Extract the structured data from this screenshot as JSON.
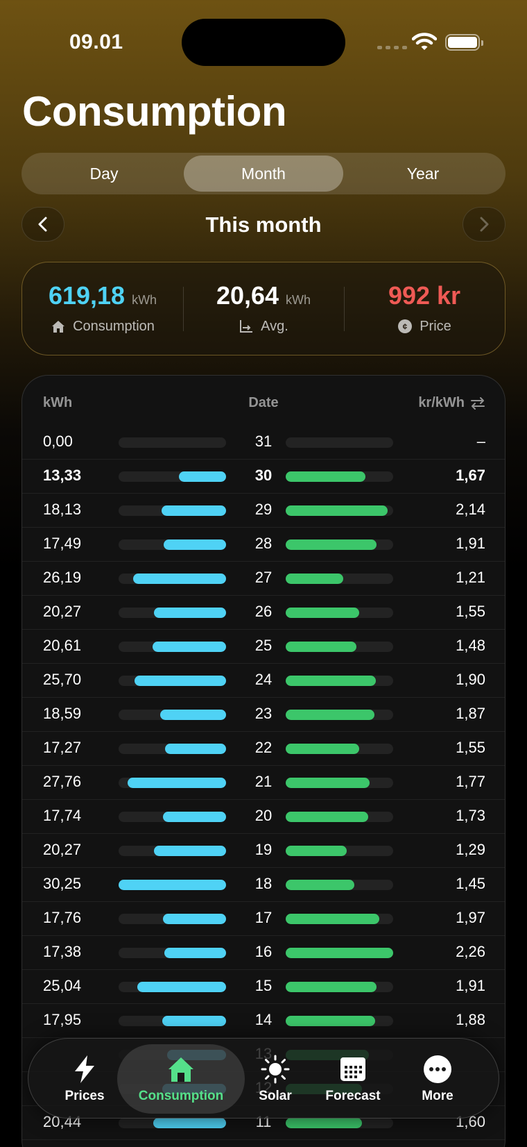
{
  "status": {
    "time": "09.01"
  },
  "title": "Consumption",
  "segments": [
    {
      "label": "Day",
      "active": false
    },
    {
      "label": "Month",
      "active": true
    },
    {
      "label": "Year",
      "active": false
    }
  ],
  "period": {
    "label": "This month"
  },
  "summary": {
    "consumption": {
      "value": "619,18",
      "unit": "kWh",
      "label": "Consumption",
      "icon": "home-icon",
      "color": "#4fd2f5"
    },
    "average": {
      "value": "20,64",
      "unit": "kWh",
      "label": "Avg.",
      "icon": "chart-axis-icon"
    },
    "price": {
      "value": "992 kr",
      "label": "Price",
      "icon": "coin-icon",
      "color": "#ef5a55"
    }
  },
  "table": {
    "headers": {
      "kwh": "kWh",
      "date": "Date",
      "price": "kr/kWh"
    },
    "consumption_max": 30.25,
    "price_max": 2.26,
    "rows": [
      {
        "kwh": "0,00",
        "date": "31",
        "price": "–",
        "kwh_value": 0,
        "price_value": 0
      },
      {
        "kwh": "13,33",
        "date": "30",
        "price": "1,67",
        "kwh_value": 13.33,
        "price_value": 1.67,
        "bold": true
      },
      {
        "kwh": "18,13",
        "date": "29",
        "price": "2,14",
        "kwh_value": 18.13,
        "price_value": 2.14
      },
      {
        "kwh": "17,49",
        "date": "28",
        "price": "1,91",
        "kwh_value": 17.49,
        "price_value": 1.91
      },
      {
        "kwh": "26,19",
        "date": "27",
        "price": "1,21",
        "kwh_value": 26.19,
        "price_value": 1.21
      },
      {
        "kwh": "20,27",
        "date": "26",
        "price": "1,55",
        "kwh_value": 20.27,
        "price_value": 1.55
      },
      {
        "kwh": "20,61",
        "date": "25",
        "price": "1,48",
        "kwh_value": 20.61,
        "price_value": 1.48
      },
      {
        "kwh": "25,70",
        "date": "24",
        "price": "1,90",
        "kwh_value": 25.7,
        "price_value": 1.9
      },
      {
        "kwh": "18,59",
        "date": "23",
        "price": "1,87",
        "kwh_value": 18.59,
        "price_value": 1.87
      },
      {
        "kwh": "17,27",
        "date": "22",
        "price": "1,55",
        "kwh_value": 17.27,
        "price_value": 1.55
      },
      {
        "kwh": "27,76",
        "date": "21",
        "price": "1,77",
        "kwh_value": 27.76,
        "price_value": 1.77
      },
      {
        "kwh": "17,74",
        "date": "20",
        "price": "1,73",
        "kwh_value": 17.74,
        "price_value": 1.73
      },
      {
        "kwh": "20,27",
        "date": "19",
        "price": "1,29",
        "kwh_value": 20.27,
        "price_value": 1.29
      },
      {
        "kwh": "30,25",
        "date": "18",
        "price": "1,45",
        "kwh_value": 30.25,
        "price_value": 1.45
      },
      {
        "kwh": "17,76",
        "date": "17",
        "price": "1,97",
        "kwh_value": 17.76,
        "price_value": 1.97
      },
      {
        "kwh": "17,38",
        "date": "16",
        "price": "2,26",
        "kwh_value": 17.38,
        "price_value": 2.26
      },
      {
        "kwh": "25,04",
        "date": "15",
        "price": "1,91",
        "kwh_value": 25.04,
        "price_value": 1.91
      },
      {
        "kwh": "17,95",
        "date": "14",
        "price": "1,88",
        "kwh_value": 17.95,
        "price_value": 1.88
      },
      {
        "kwh": "",
        "date": "13",
        "price": "",
        "kwh_value": 16.5,
        "price_value": 1.75
      },
      {
        "kwh": "",
        "date": "12",
        "price": "",
        "kwh_value": 18.0,
        "price_value": 1.6
      },
      {
        "kwh": "20,44",
        "date": "11",
        "price": "1,60",
        "kwh_value": 20.44,
        "price_value": 1.6
      }
    ]
  },
  "tabbar": [
    {
      "label": "Prices",
      "icon": "bolt-icon",
      "active": false
    },
    {
      "label": "Consumption",
      "icon": "home-icon",
      "active": true
    },
    {
      "label": "Solar",
      "icon": "sun-icon",
      "active": false
    },
    {
      "label": "Forecast",
      "icon": "calendar-icon",
      "active": false
    },
    {
      "label": "More",
      "icon": "more-icon",
      "active": false
    }
  ]
}
